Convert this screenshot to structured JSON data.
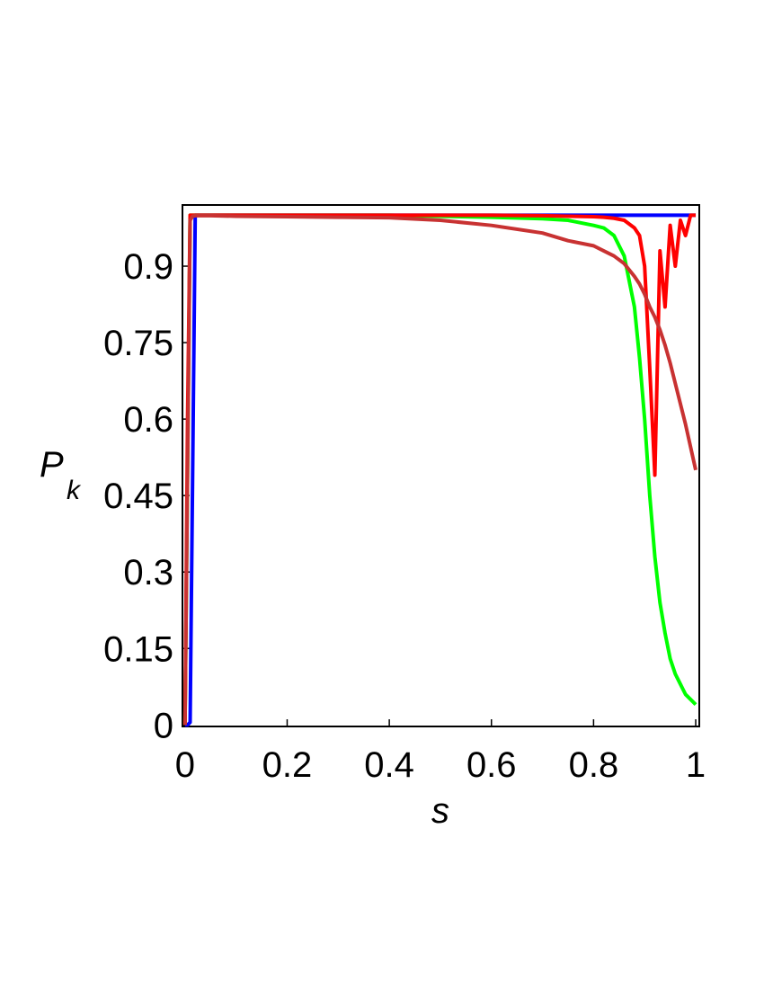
{
  "chart_data": {
    "type": "line",
    "x_label": "s",
    "y_label": "P",
    "y_label_subscript": "k",
    "x": [
      0,
      0.005,
      0.01,
      0.015,
      0.02,
      0.05,
      0.1,
      0.2,
      0.3,
      0.4,
      0.5,
      0.6,
      0.7,
      0.75,
      0.8,
      0.82,
      0.84,
      0.86,
      0.88,
      0.89,
      0.9,
      0.91,
      0.92,
      0.93,
      0.94,
      0.95,
      0.96,
      0.97,
      0.98,
      0.99,
      1
    ],
    "series": [
      {
        "color": "#0000ff",
        "values": [
          0,
          0,
          0.005,
          0.5,
          1,
          1,
          1,
          1,
          1,
          1,
          1,
          1,
          1,
          1,
          1,
          1,
          1,
          1,
          1,
          1,
          1,
          1,
          1,
          1,
          1,
          1,
          1,
          1,
          1,
          1,
          1
        ]
      },
      {
        "color": "#00ff00",
        "values": [
          0,
          0.5,
          1,
          1,
          1,
          1,
          1,
          1,
          1,
          1,
          0.998,
          0.996,
          0.993,
          0.99,
          0.98,
          0.975,
          0.96,
          0.92,
          0.82,
          0.72,
          0.6,
          0.45,
          0.33,
          0.24,
          0.18,
          0.13,
          0.1,
          0.08,
          0.06,
          0.05,
          0.04
        ]
      },
      {
        "color": "#ff0000",
        "values": [
          0,
          0.6,
          1,
          1,
          1,
          1,
          1,
          1,
          1,
          1,
          1,
          1,
          0.999,
          0.998,
          0.997,
          0.996,
          0.994,
          0.99,
          0.975,
          0.96,
          0.9,
          0.7,
          0.49,
          0.93,
          0.82,
          0.98,
          0.9,
          0.99,
          0.96,
          1,
          1
        ]
      },
      {
        "color": "#c83232",
        "values": [
          0,
          0.5,
          0.99,
          0.998,
          0.999,
          0.999,
          0.998,
          0.997,
          0.996,
          0.995,
          0.99,
          0.98,
          0.965,
          0.95,
          0.94,
          0.93,
          0.92,
          0.905,
          0.88,
          0.865,
          0.845,
          0.82,
          0.8,
          0.775,
          0.745,
          0.71,
          0.67,
          0.63,
          0.59,
          0.545,
          0.5
        ]
      }
    ],
    "xlim": [
      -0.005,
      1.007
    ],
    "ylim": [
      -0.003,
      1.02
    ],
    "xticks": [
      0,
      0.2,
      0.4,
      0.6,
      0.8,
      1
    ],
    "yticks": [
      0,
      0.15,
      0.3,
      0.45,
      0.6,
      0.75,
      0.9
    ]
  }
}
